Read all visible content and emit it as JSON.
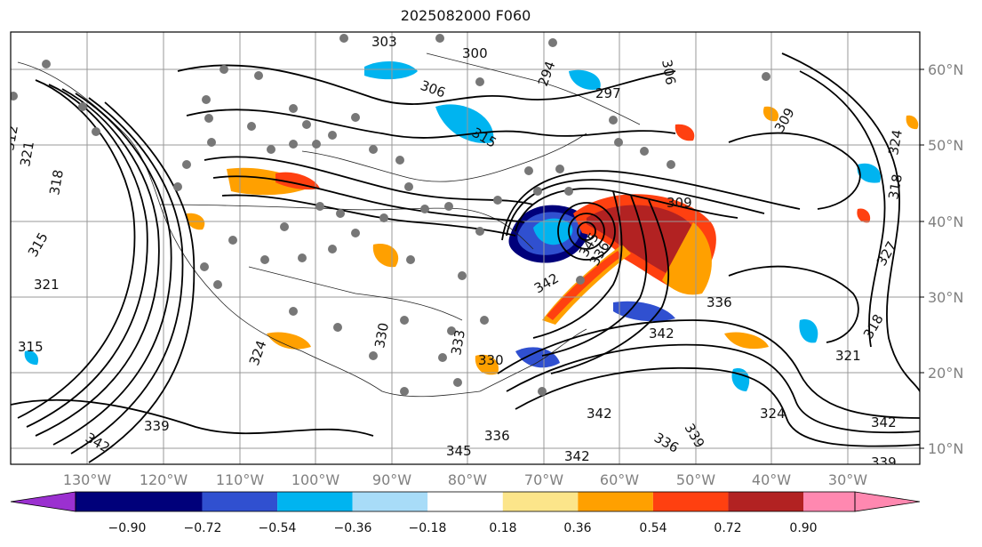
{
  "title": "2025082000 F060",
  "longitude_labels": [
    "130°W",
    "120°W",
    "110°W",
    "100°W",
    "90°W",
    "80°W",
    "70°W",
    "60°W",
    "50°W",
    "40°W",
    "30°W"
  ],
  "latitude_labels": [
    "60°N",
    "50°N",
    "40°N",
    "30°N",
    "20°N",
    "10°N"
  ],
  "contour_labels": [
    "303",
    "300",
    "306",
    "312",
    "315",
    "321",
    "318",
    "309",
    "306",
    "294",
    "297",
    "324",
    "327",
    "330",
    "333",
    "336",
    "339",
    "342",
    "345"
  ],
  "colorbar": {
    "ticks": [
      "−0.90",
      "−0.72",
      "−0.54",
      "−0.36",
      "−0.18",
      "0.18",
      "0.36",
      "0.54",
      "0.72",
      "0.90"
    ],
    "colors": [
      "#9b30d0",
      "#00007a",
      "#3050d0",
      "#00b4f0",
      "#a8dcf8",
      "#ffffff",
      "#fce58a",
      "#ffa000",
      "#ff4010",
      "#b22222",
      "#ff88b0"
    ]
  }
}
